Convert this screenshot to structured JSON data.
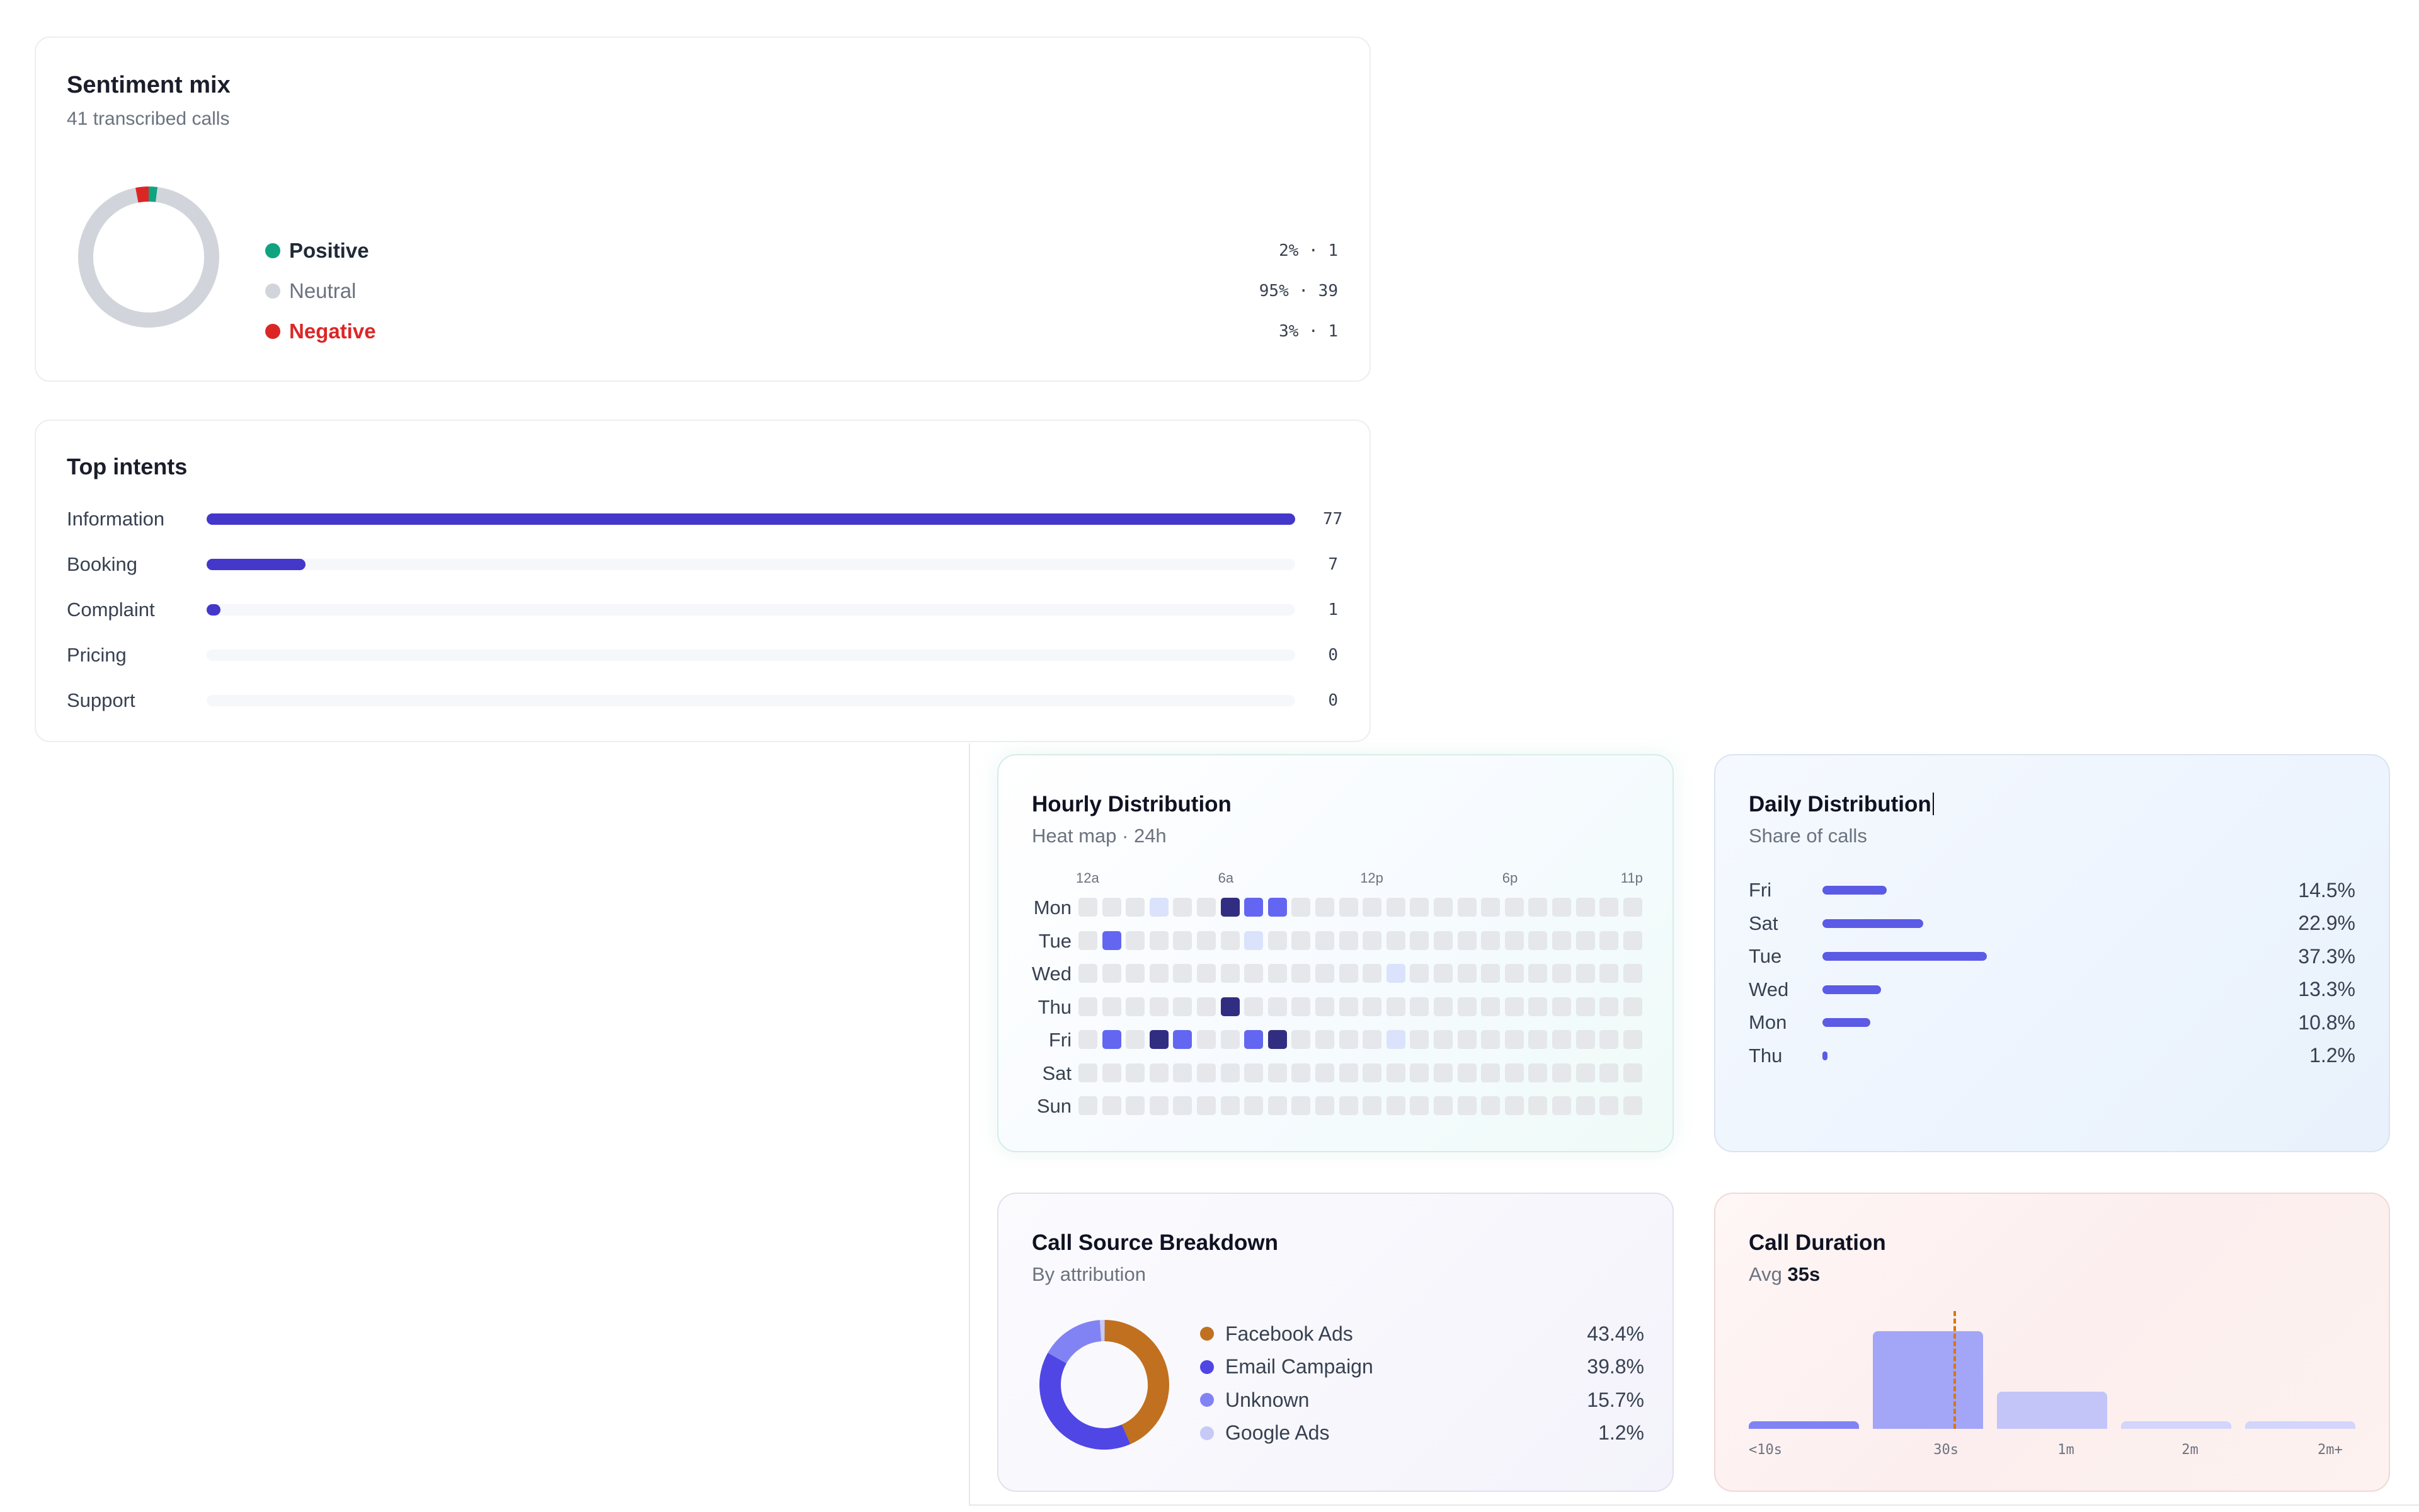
{
  "sentiment": {
    "title": "Sentiment mix",
    "subtitle": "41 transcribed calls",
    "items": [
      {
        "label": "Positive",
        "pct_count": "2% · 1",
        "color": "#10a37f",
        "label_color": "#1f2937"
      },
      {
        "label": "Neutral",
        "pct_count": "95% · 39",
        "color": "#d1d5db",
        "label_color": "#6b7280"
      },
      {
        "label": "Negative",
        "pct_count": "3% · 1",
        "color": "#dc2626",
        "label_color": "#dc2626"
      }
    ],
    "donut_fractions": [
      0.02,
      0.95,
      0.03
    ]
  },
  "intents": {
    "title": "Top intents",
    "max": 77,
    "items": [
      {
        "label": "Information",
        "value": 77
      },
      {
        "label": "Booking",
        "value": 7
      },
      {
        "label": "Complaint",
        "value": 1
      },
      {
        "label": "Pricing",
        "value": 0
      },
      {
        "label": "Support",
        "value": 0
      }
    ]
  },
  "hourly": {
    "title": "Hourly Distribution",
    "subtitle": "Heat map · 24h",
    "hour_labels": [
      "12a",
      "6a",
      "12p",
      "6p",
      "11p"
    ],
    "days": [
      "Mon",
      "Tue",
      "Wed",
      "Thu",
      "Fri",
      "Sat",
      "Sun"
    ],
    "levels": [
      [
        0,
        0,
        0,
        1,
        0,
        0,
        4,
        3,
        3,
        0,
        0,
        0,
        0,
        0,
        0,
        0,
        0,
        0,
        0,
        0,
        0,
        0,
        0,
        0
      ],
      [
        0,
        3,
        0,
        0,
        0,
        0,
        0,
        1,
        0,
        0,
        0,
        0,
        0,
        0,
        0,
        0,
        0,
        0,
        0,
        0,
        0,
        0,
        0,
        0
      ],
      [
        0,
        0,
        0,
        0,
        0,
        0,
        0,
        0,
        0,
        0,
        0,
        0,
        0,
        1,
        0,
        0,
        0,
        0,
        0,
        0,
        0,
        0,
        0,
        0
      ],
      [
        0,
        0,
        0,
        0,
        0,
        0,
        4,
        0,
        0,
        0,
        0,
        0,
        0,
        0,
        0,
        0,
        0,
        0,
        0,
        0,
        0,
        0,
        0,
        0
      ],
      [
        0,
        3,
        0,
        4,
        3,
        0,
        0,
        3,
        4,
        0,
        0,
        0,
        0,
        1,
        0,
        0,
        0,
        0,
        0,
        0,
        0,
        0,
        0,
        0
      ],
      [
        0,
        0,
        0,
        0,
        0,
        0,
        0,
        0,
        0,
        0,
        0,
        0,
        0,
        0,
        0,
        0,
        0,
        0,
        0,
        0,
        0,
        0,
        0,
        0
      ],
      [
        0,
        0,
        0,
        0,
        0,
        0,
        0,
        0,
        0,
        0,
        0,
        0,
        0,
        0,
        0,
        0,
        0,
        0,
        0,
        0,
        0,
        0,
        0,
        0
      ]
    ],
    "level_colors": [
      "#e5e7eb",
      "#dbe2fb",
      "#a5b4fc",
      "#6366f1",
      "#312e81"
    ]
  },
  "daily": {
    "title": "Daily Distribution",
    "subtitle": "Share of calls",
    "max": 37.3,
    "items": [
      {
        "day": "Fri",
        "value": 14.5,
        "label": "14.5%"
      },
      {
        "day": "Sat",
        "value": 22.9,
        "label": "22.9%"
      },
      {
        "day": "Tue",
        "value": 37.3,
        "label": "37.3%"
      },
      {
        "day": "Wed",
        "value": 13.3,
        "label": "13.3%"
      },
      {
        "day": "Mon",
        "value": 10.8,
        "label": "10.8%"
      },
      {
        "day": "Thu",
        "value": 1.2,
        "label": "1.2%"
      }
    ]
  },
  "source": {
    "title": "Call Source Breakdown",
    "subtitle": "By attribution",
    "items": [
      {
        "label": "Facebook Ads",
        "value": 43.4,
        "pct": "43.4%",
        "color": "#c0701f"
      },
      {
        "label": "Email Campaign",
        "value": 39.8,
        "pct": "39.8%",
        "color": "#4f46e5"
      },
      {
        "label": "Unknown",
        "value": 15.7,
        "pct": "15.7%",
        "color": "#8183f4"
      },
      {
        "label": "Google Ads",
        "value": 1.2,
        "pct": "1.2%",
        "color": "#c7c9f7"
      }
    ]
  },
  "duration": {
    "title": "Call Duration",
    "subtitle_prefix": "Avg",
    "avg": "35s",
    "chart_data": {
      "type": "bar",
      "categories": [
        "<10s",
        "30s",
        "1m",
        "2m",
        "2m+"
      ],
      "values": [
        0.08,
        1.0,
        0.38,
        0.08,
        0.08
      ],
      "avg_marker_color": "#d97706"
    }
  }
}
